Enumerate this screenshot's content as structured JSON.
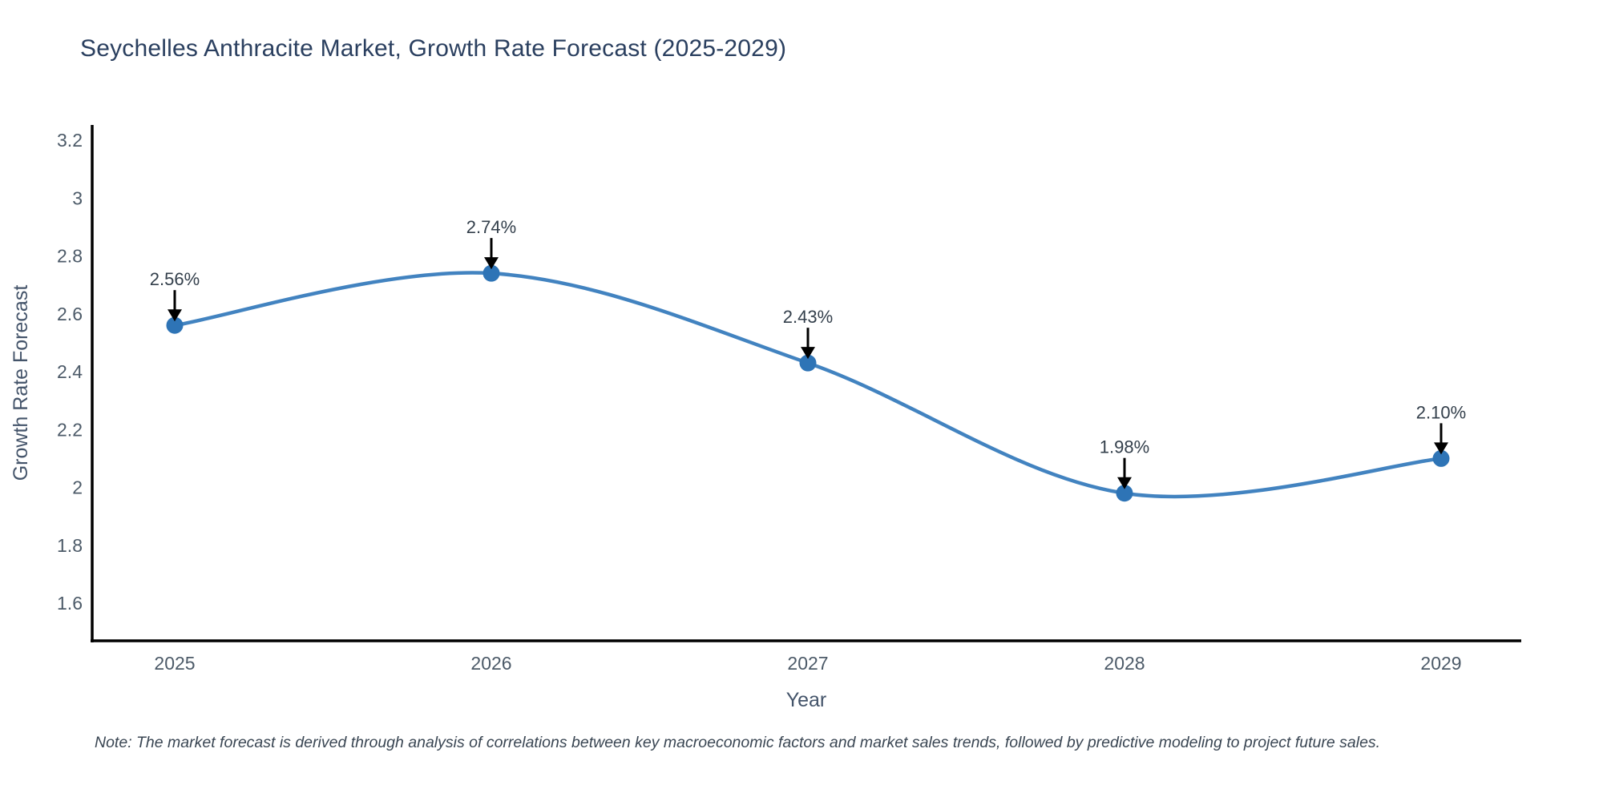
{
  "title": "Seychelles Anthracite Market, Growth Rate Forecast (2025-2029)",
  "note": "Note: The market forecast is derived through analysis of correlations between key macroeconomic factors and market sales trends, followed by predictive modeling to project future sales.",
  "chart_data": {
    "type": "line",
    "line_shape": "spline",
    "title": "Seychelles Anthracite Market, Growth Rate Forecast (2025-2029)",
    "xlabel": "Year",
    "ylabel": "Growth Rate Forecast",
    "categories": [
      "2025",
      "2026",
      "2027",
      "2028",
      "2029"
    ],
    "values": [
      2.56,
      2.74,
      2.43,
      1.98,
      2.1
    ],
    "labels": [
      "2.56%",
      "2.74%",
      "2.43%",
      "1.98%",
      "2.10%"
    ],
    "yticks": [
      3.2,
      3,
      2.8,
      2.6,
      2.4,
      2.2,
      2,
      1.8,
      1.6
    ],
    "ytick_labels": [
      "3.2",
      "3",
      "2.8",
      "2.6",
      "2.4",
      "2.2",
      "2",
      "1.8",
      "1.6"
    ],
    "ylim": [
      1.45,
      3.25
    ],
    "grid": false,
    "legend_visible": false,
    "line_color": "#4283c0",
    "marker_color": "#2e74b6",
    "arrow_color": "#000000"
  },
  "colors": {
    "background": "#ffffff",
    "title_text": "#2a3f5f",
    "tick_text": "#4c5a68",
    "axis_line": "#000000",
    "annotation_text": "#333f4b",
    "note_text": "#3a4653"
  }
}
